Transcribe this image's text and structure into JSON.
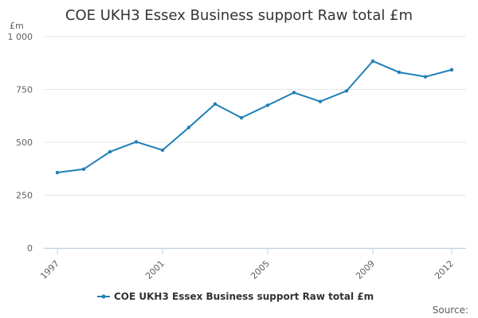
{
  "chart_data": {
    "type": "line",
    "title": "COE UKH3 Essex Business support Raw total £m",
    "unit_label": "£m",
    "x": [
      1997,
      1998,
      1999,
      2000,
      2001,
      2002,
      2003,
      2004,
      2005,
      2006,
      2007,
      2008,
      2009,
      2010,
      2011,
      2012
    ],
    "x_tick_labels": [
      "1997",
      "2001",
      "2005",
      "2009",
      "2012"
    ],
    "x_tick_values": [
      1997,
      2001,
      2005,
      2009,
      2012
    ],
    "xlim": [
      1997,
      2012
    ],
    "y_tick_labels": [
      "0",
      "250",
      "500",
      "750",
      "1 000"
    ],
    "y_tick_values": [
      0,
      250,
      500,
      750,
      1000
    ],
    "ylim": [
      0,
      1000
    ],
    "grid": true,
    "legend_position": "bottom-center",
    "series": [
      {
        "name": "COE UKH3 Essex Business support Raw total £m",
        "color": "#1f7fb6",
        "values": [
          357,
          373,
          455,
          502,
          463,
          570,
          681,
          616,
          675,
          735,
          693,
          743,
          884,
          831,
          810,
          843
        ]
      }
    ],
    "credit": "Source:"
  }
}
